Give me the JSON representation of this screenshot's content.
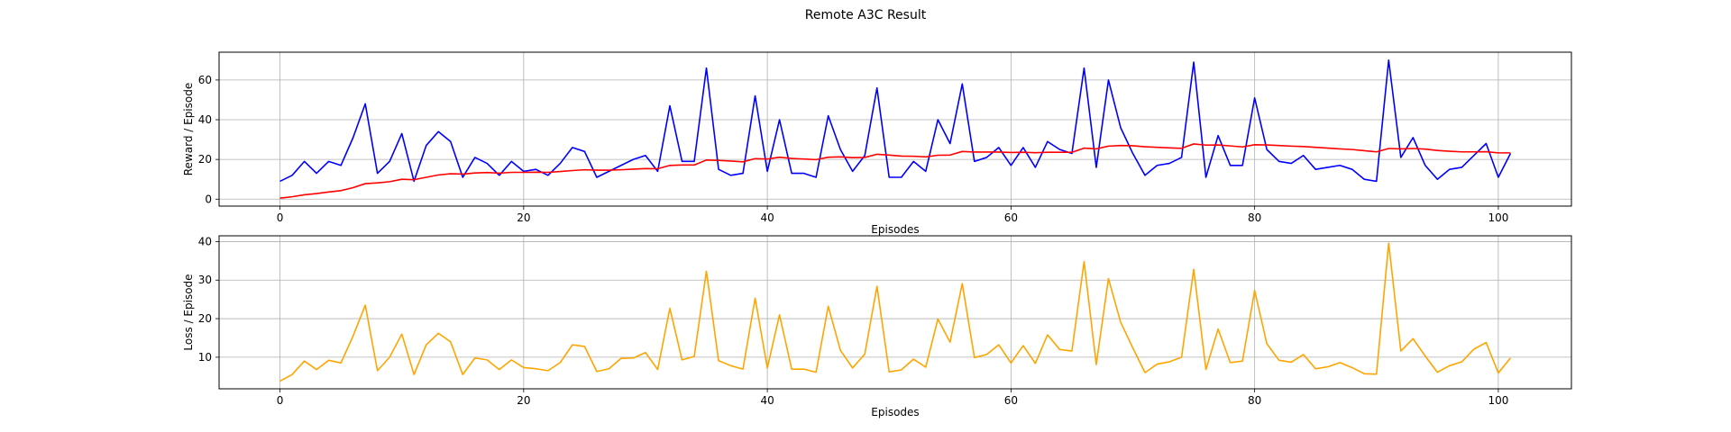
{
  "title": "Remote A3C Result",
  "chart_data": [
    {
      "type": "line",
      "xlabel": "Episodes",
      "ylabel": "Reward / Episode",
      "xlim": [
        -5,
        106
      ],
      "ylim": [
        -3.5,
        74
      ],
      "xticks": [
        0,
        20,
        40,
        60,
        80,
        100
      ],
      "yticks": [
        0,
        20,
        40,
        60
      ],
      "grid": true,
      "legend": "none",
      "series": [
        {
          "color": "#0000ff",
          "x_start": 0,
          "values": [
            9,
            12,
            19,
            13,
            19,
            17,
            31,
            48,
            13,
            19,
            33,
            9,
            27,
            34,
            29,
            11,
            21,
            18,
            12,
            19,
            14,
            15,
            12,
            18,
            26,
            24,
            11,
            14,
            17,
            20,
            22,
            14,
            47,
            19,
            19,
            66,
            15,
            12,
            13,
            52,
            14,
            40,
            13,
            13,
            11,
            42,
            25,
            14,
            22,
            56,
            11,
            11,
            19,
            14,
            40,
            28,
            58,
            19,
            21,
            26,
            17,
            26,
            16,
            29,
            25,
            23,
            66,
            16,
            60,
            36,
            23,
            12,
            17,
            18,
            21,
            69,
            11,
            32,
            17,
            17,
            51,
            25,
            19,
            18,
            22,
            15,
            16,
            17,
            15,
            10,
            9,
            70,
            21,
            31,
            17,
            10,
            15,
            16,
            22,
            28,
            11,
            23
          ]
        },
        {
          "color": "#ff0000",
          "x_start": 0,
          "values": [
            0.5,
            1.2,
            2.2,
            2.8,
            3.6,
            4.3,
            5.8,
            7.8,
            8.2,
            8.8,
            10.0,
            9.8,
            11.0,
            12.2,
            12.8,
            12.6,
            13.2,
            13.4,
            13.1,
            13.5,
            13.5,
            13.6,
            13.5,
            13.9,
            14.4,
            14.8,
            14.6,
            14.6,
            14.8,
            15.1,
            15.4,
            15.3,
            17.0,
            17.2,
            17.2,
            19.7,
            19.5,
            19.2,
            18.8,
            20.4,
            20.2,
            21.1,
            20.5,
            20.2,
            19.9,
            21.1,
            21.3,
            20.9,
            21.0,
            22.6,
            22.2,
            21.7,
            21.6,
            21.3,
            22.1,
            22.2,
            24.0,
            23.7,
            23.7,
            23.7,
            23.5,
            23.6,
            23.4,
            23.6,
            23.6,
            23.6,
            25.7,
            25.3,
            26.7,
            27.0,
            26.9,
            26.4,
            26.1,
            25.8,
            25.6,
            27.8,
            27.2,
            27.3,
            26.8,
            26.3,
            27.4,
            27.3,
            27.0,
            26.7,
            26.5,
            26.1,
            25.7,
            25.3,
            25.0,
            24.4,
            23.8,
            25.5,
            25.3,
            25.5,
            25.2,
            24.5,
            24.1,
            23.8,
            23.8,
            23.9,
            23.3,
            23.3
          ]
        }
      ]
    },
    {
      "type": "line",
      "xlabel": "Episodes",
      "ylabel": "Loss / Episode",
      "xlim": [
        -5,
        106
      ],
      "ylim": [
        1.8,
        41.5
      ],
      "xticks": [
        0,
        20,
        40,
        60,
        80,
        100
      ],
      "yticks": [
        10,
        20,
        30,
        40
      ],
      "grid": true,
      "legend": "none",
      "series": [
        {
          "color": "#ffa500",
          "x_start": 0,
          "values": [
            3.8,
            5.5,
            9.0,
            6.8,
            9.2,
            8.5,
            15.5,
            23.5,
            6.5,
            10.0,
            16.0,
            5.5,
            13.2,
            16.2,
            14.0,
            5.5,
            9.8,
            9.3,
            6.8,
            9.3,
            7.3,
            7.0,
            6.5,
            8.6,
            13.2,
            12.8,
            6.3,
            7.0,
            9.7,
            9.8,
            11.2,
            6.8,
            22.7,
            9.3,
            10.2,
            32.3,
            9.1,
            7.8,
            6.9,
            25.3,
            7.2,
            21.0,
            6.9,
            6.9,
            6.1,
            23.2,
            11.8,
            7.2,
            10.8,
            28.4,
            6.2,
            6.7,
            9.5,
            7.4,
            19.9,
            13.9,
            29.1,
            9.9,
            10.7,
            13.2,
            8.5,
            13.0,
            8.4,
            15.8,
            12.0,
            11.6,
            34.8,
            8.1,
            30.4,
            19.1,
            12.4,
            6.0,
            8.2,
            8.8,
            10.0,
            32.8,
            6.8,
            17.3,
            8.6,
            9.0,
            27.3,
            13.5,
            9.2,
            8.7,
            10.7,
            7.0,
            7.5,
            8.6,
            7.3,
            5.7,
            5.6,
            39.6,
            11.6,
            14.8,
            10.3,
            6.1,
            7.8,
            8.8,
            12.1,
            13.8,
            5.9,
            9.8
          ]
        }
      ]
    }
  ]
}
